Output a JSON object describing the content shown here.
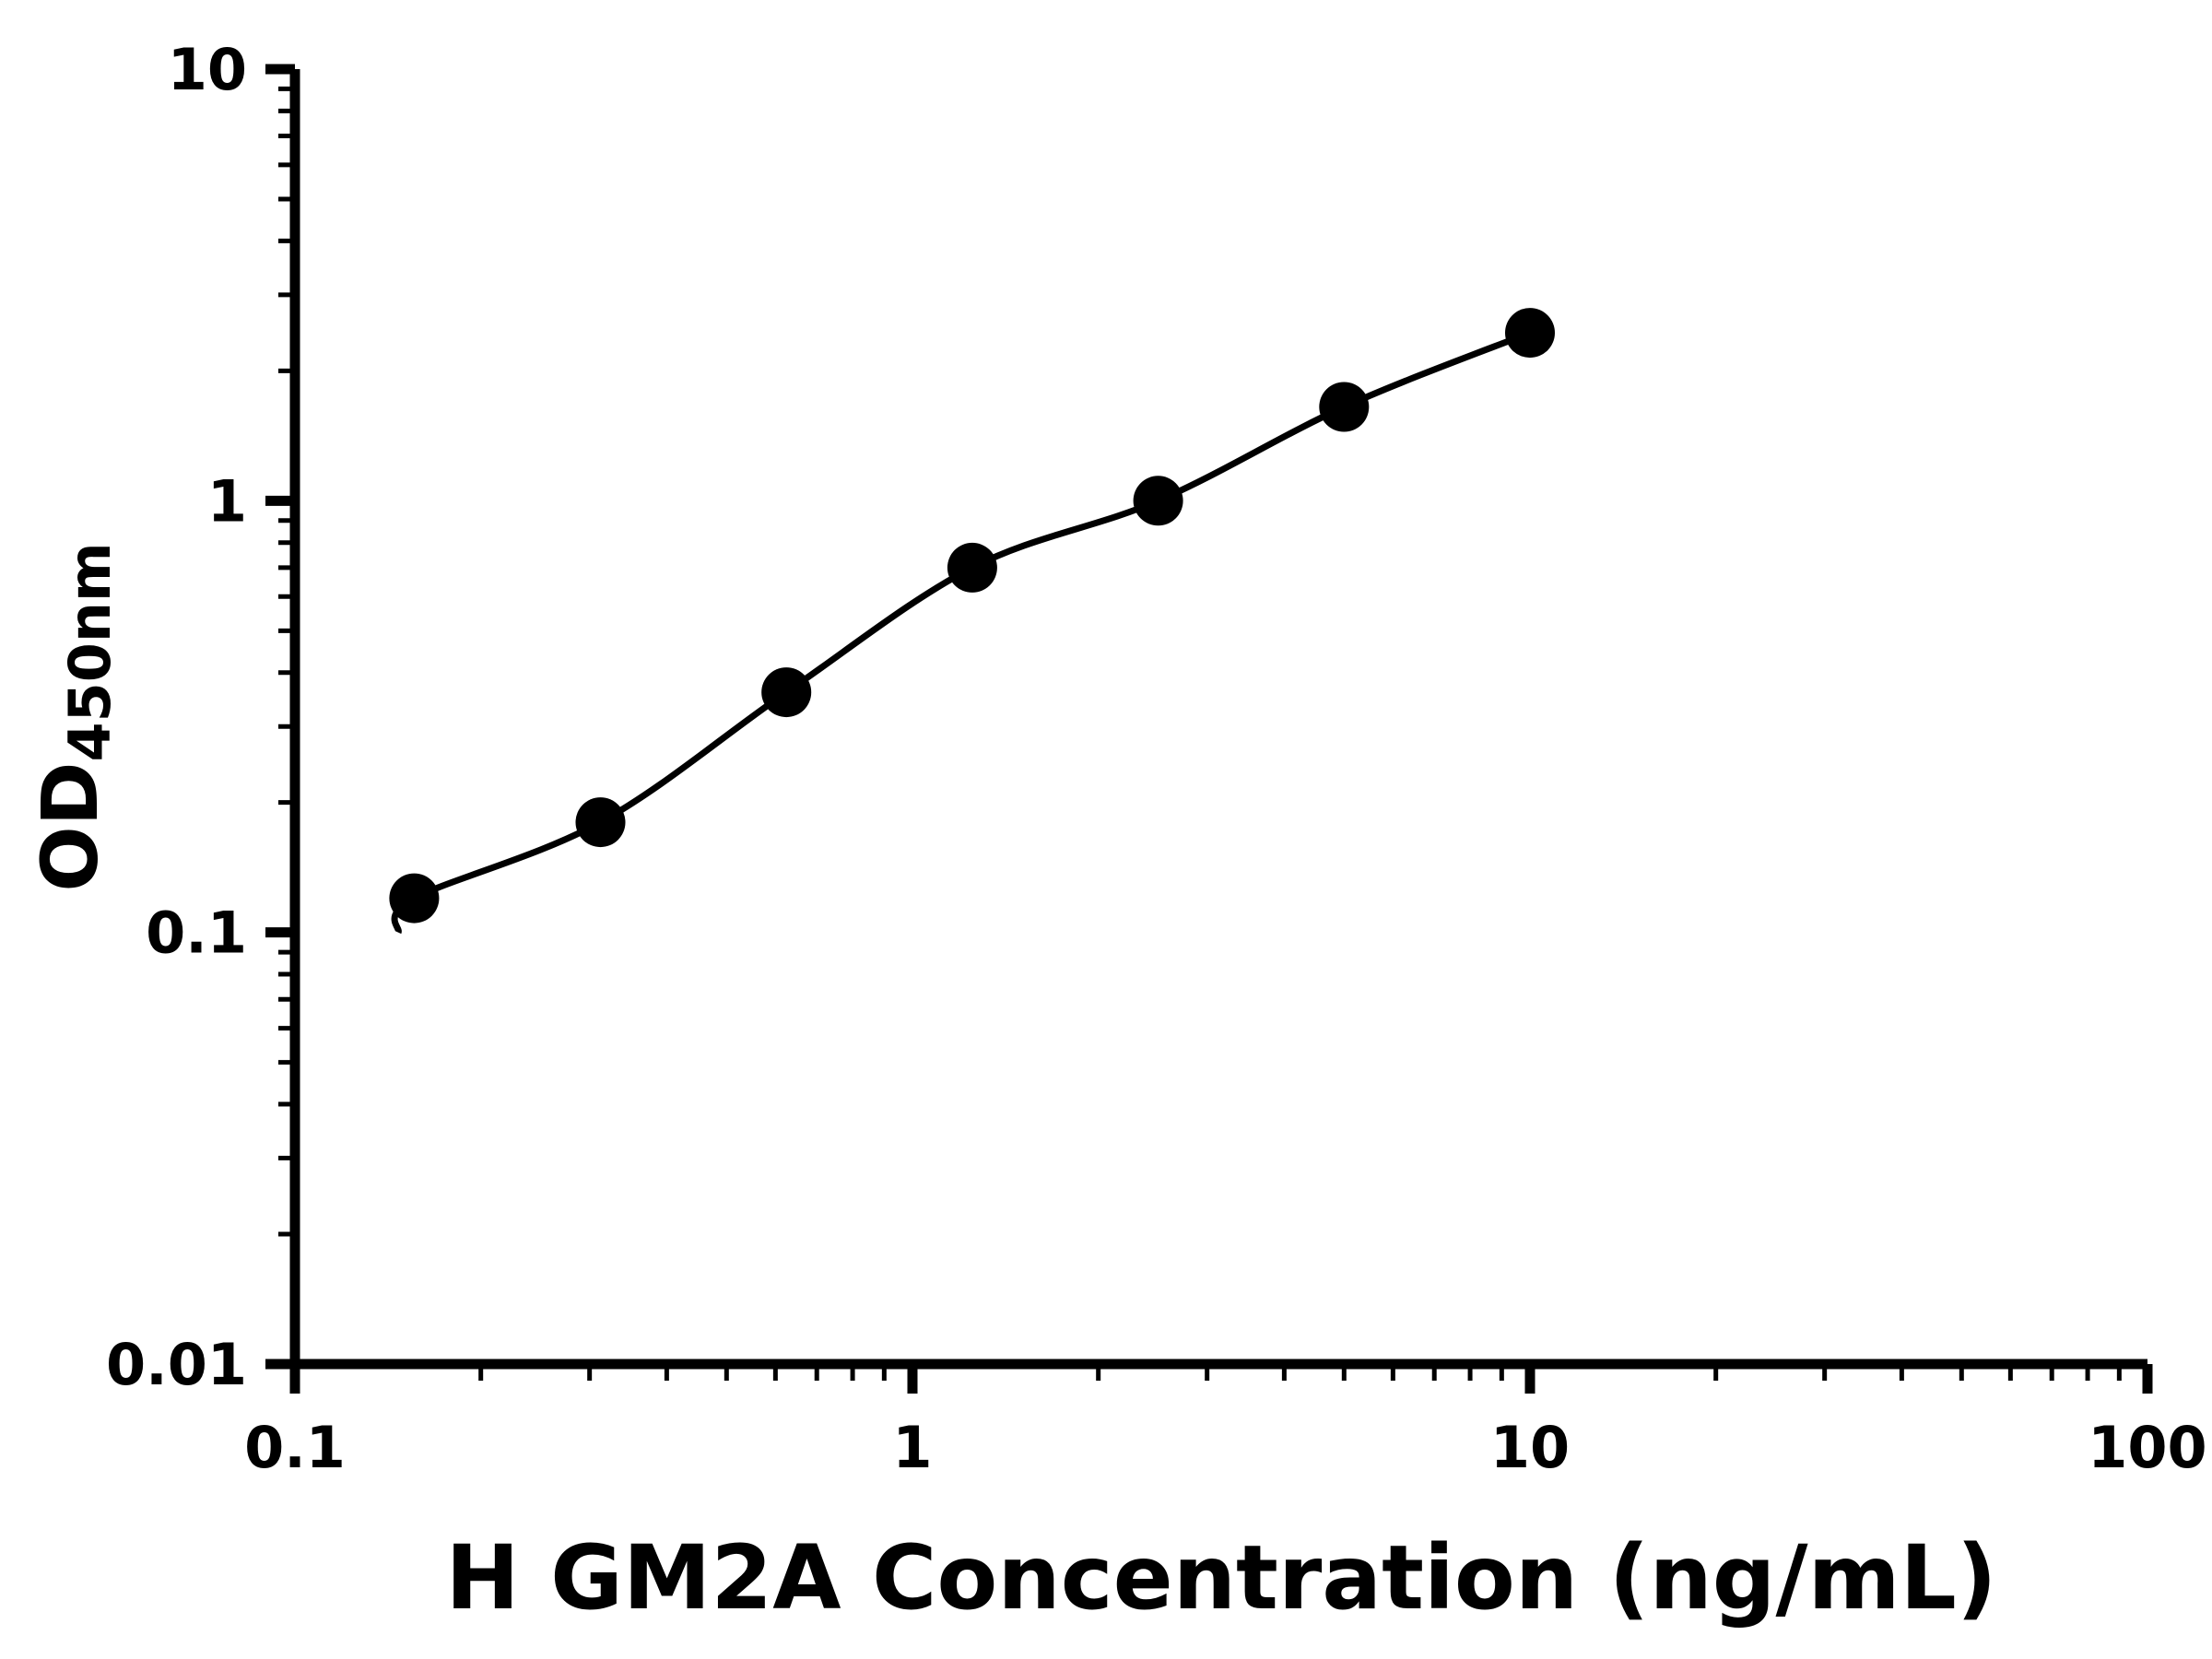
{
  "chart_data": {
    "type": "scatter",
    "xlabel": "H GM2A Concentration (ng/mL)",
    "ylabel": "OD450nm",
    "ylabel_main": "OD",
    "ylabel_sub": "450nm",
    "x_scale": "log",
    "y_scale": "log",
    "xlim": [
      0.1,
      100
    ],
    "ylim": [
      0.01,
      10
    ],
    "x_ticks": [
      {
        "value": 0.1,
        "label": "0.1"
      },
      {
        "value": 1,
        "label": "1"
      },
      {
        "value": 10,
        "label": "10"
      },
      {
        "value": 100,
        "label": "100"
      }
    ],
    "y_ticks": [
      {
        "value": 0.01,
        "label": "0.01"
      },
      {
        "value": 0.1,
        "label": "0.1"
      },
      {
        "value": 1,
        "label": "1"
      },
      {
        "value": 10,
        "label": "10"
      }
    ],
    "minor_ticks": true,
    "grid": false,
    "legend": "none",
    "background": "#ffffff",
    "axis_color": "#000000",
    "series": [
      {
        "marker": "filled-circle",
        "color": "#000000",
        "x": [
          0.156,
          0.3125,
          0.625,
          1.25,
          2.5,
          5,
          10
        ],
        "y": [
          0.12,
          0.18,
          0.36,
          0.7,
          1.0,
          1.65,
          2.45
        ]
      }
    ],
    "trendline": {
      "style": "solid",
      "color": "#000000",
      "start_x": 0.147,
      "start_y": 0.1
    }
  }
}
